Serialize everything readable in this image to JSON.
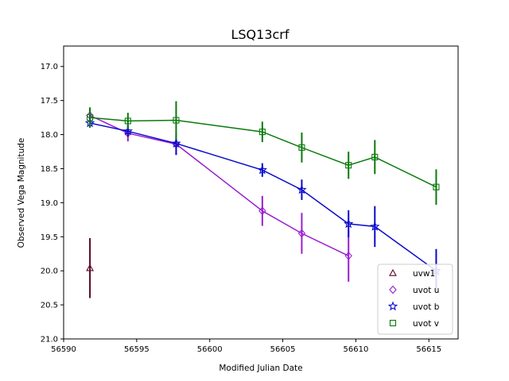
{
  "chart_data": {
    "type": "scatter",
    "title": "LSQ13crf",
    "xlabel": "Modified Julian Date",
    "ylabel": "Observed Vega Magnitude",
    "xlim": [
      56590,
      56617
    ],
    "ylim": [
      21.0,
      16.7
    ],
    "y_inverted": true,
    "xticks": [
      "56590",
      "56595",
      "56600",
      "56605",
      "56610",
      "56615"
    ],
    "yticks": [
      "17.0",
      "17.5",
      "18.0",
      "18.5",
      "19.0",
      "19.5",
      "20.0",
      "20.5",
      "21.0"
    ],
    "grid": false,
    "legend_position": "lower-right",
    "series": [
      {
        "name": "uvw1",
        "color": "#5a0a2a",
        "marker": "triangle",
        "line": false,
        "points": [
          {
            "x": 56591.8,
            "y": 19.96,
            "err": 0.44
          }
        ]
      },
      {
        "name": "uvot u",
        "color": "#9a1fd0",
        "marker": "diamond",
        "line": true,
        "points": [
          {
            "x": 56591.8,
            "y": 17.72,
            "err": 0.08
          },
          {
            "x": 56594.4,
            "y": 17.98,
            "err": 0.12
          },
          {
            "x": 56597.7,
            "y": 18.14,
            "err": 0.15
          },
          {
            "x": 56603.6,
            "y": 19.12,
            "err": 0.22
          },
          {
            "x": 56606.3,
            "y": 19.45,
            "err": 0.3
          },
          {
            "x": 56609.5,
            "y": 19.78,
            "err": 0.38
          }
        ]
      },
      {
        "name": "uvot b",
        "color": "#0a0acc",
        "marker": "star",
        "line": true,
        "points": [
          {
            "x": 56591.8,
            "y": 17.83,
            "err": 0.07
          },
          {
            "x": 56594.4,
            "y": 17.95,
            "err": 0.08
          },
          {
            "x": 56597.7,
            "y": 18.13,
            "err": 0.17
          },
          {
            "x": 56603.6,
            "y": 18.52,
            "err": 0.1
          },
          {
            "x": 56606.3,
            "y": 18.81,
            "err": 0.15
          },
          {
            "x": 56609.5,
            "y": 19.31,
            "err": 0.2
          },
          {
            "x": 56611.3,
            "y": 19.35,
            "err": 0.3
          },
          {
            "x": 56615.5,
            "y": 20.0,
            "err": 0.32
          }
        ]
      },
      {
        "name": "uvot v",
        "color": "#0a7a0a",
        "marker": "square",
        "line": true,
        "points": [
          {
            "x": 56591.8,
            "y": 17.75,
            "err": 0.15
          },
          {
            "x": 56594.4,
            "y": 17.8,
            "err": 0.12
          },
          {
            "x": 56597.7,
            "y": 17.79,
            "err": 0.28
          },
          {
            "x": 56603.6,
            "y": 17.96,
            "err": 0.15
          },
          {
            "x": 56606.3,
            "y": 18.19,
            "err": 0.22
          },
          {
            "x": 56609.5,
            "y": 18.45,
            "err": 0.2
          },
          {
            "x": 56611.3,
            "y": 18.33,
            "err": 0.25
          },
          {
            "x": 56615.5,
            "y": 18.77,
            "err": 0.26
          }
        ]
      }
    ]
  }
}
